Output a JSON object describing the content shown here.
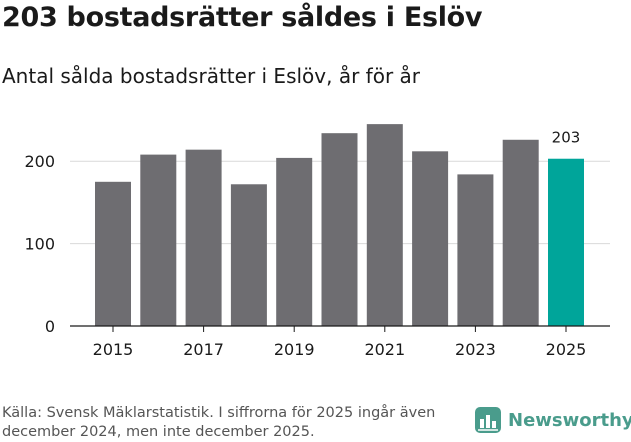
{
  "title": "203 bostadsrätter såldes i Eslöv",
  "subtitle": "Antal sålda bostadsrätter i Eslöv, år för år",
  "source": "Källa: Svensk Mäklarstatistik. I siffrorna för 2025 ingår även december 2024, men inte december 2025.",
  "logo": {
    "text": "Newsworthy",
    "icon": "newsworthy-logo-icon"
  },
  "colors": {
    "bar": "#6e6d71",
    "highlight": "#00a59a",
    "grid": "#d9d9d9",
    "axis": "#1a1a1a",
    "brand": "#4a9c8c"
  },
  "chart_data": {
    "type": "bar",
    "title": "Antal sålda bostadsrätter i Eslöv, år för år",
    "xlabel": "",
    "ylabel": "",
    "categories": [
      "2015",
      "2016",
      "2017",
      "2018",
      "2019",
      "2020",
      "2021",
      "2022",
      "2023",
      "2024",
      "2025"
    ],
    "values": [
      175,
      208,
      214,
      172,
      204,
      234,
      245,
      212,
      184,
      226,
      203
    ],
    "x_tick_labels": [
      "2015",
      "",
      "2017",
      "",
      "2019",
      "",
      "2021",
      "",
      "2023",
      "",
      "2025"
    ],
    "highlight_index": 10,
    "data_labels": [
      {
        "index": 10,
        "text": "203"
      }
    ],
    "y_ticks": [
      0,
      100,
      200
    ],
    "ylim": [
      0,
      250
    ],
    "grid": true,
    "legend": "none"
  }
}
